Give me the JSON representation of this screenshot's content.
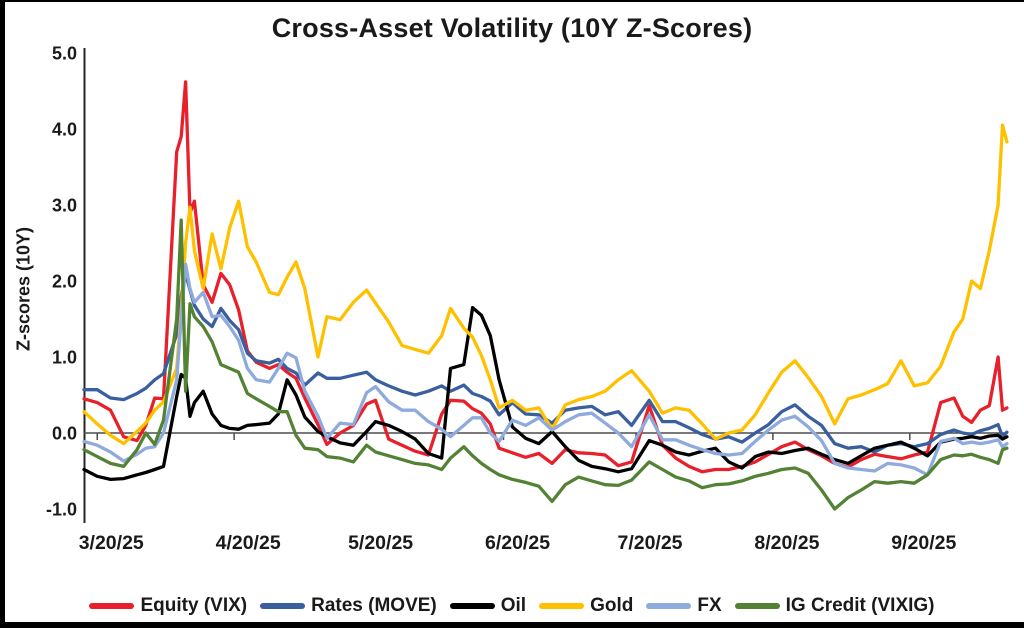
{
  "title": "Cross-Asset Volatility (10Y Z-Scores)",
  "y_axis_title": "Z-scores (10Y)",
  "chart_data": {
    "type": "line",
    "title": "Cross-Asset Volatility (10Y Z-Scores)",
    "ylabel": "Z-scores (10Y)",
    "ylim": [
      -1.0,
      5.0
    ],
    "grid": false,
    "legend_position": "bottom",
    "y_ticks": [
      "5.0",
      "4.0",
      "3.0",
      "2.0",
      "1.0",
      "0.0",
      "-1.0"
    ],
    "x_tick_labels": [
      "3/20/25",
      "4/20/25",
      "5/20/25",
      "6/20/25",
      "7/20/25",
      "8/20/25",
      "9/20/25"
    ],
    "x": [
      "3/17",
      "3/20",
      "3/23",
      "3/26",
      "3/29",
      "3/31",
      "4/2",
      "4/4",
      "4/7",
      "4/8",
      "4/9",
      "4/10",
      "4/11",
      "4/13",
      "4/15",
      "4/17",
      "4/19",
      "4/21",
      "4/23",
      "4/25",
      "4/28",
      "4/30",
      "5/2",
      "5/4",
      "5/6",
      "5/9",
      "5/11",
      "5/14",
      "5/17",
      "5/20",
      "5/22",
      "5/25",
      "5/28",
      "5/31",
      "6/3",
      "6/6",
      "6/8",
      "6/11",
      "6/13",
      "6/15",
      "6/17",
      "6/19",
      "6/22",
      "6/25",
      "6/28",
      "7/1",
      "7/4",
      "7/7",
      "7/10",
      "7/13",
      "7/16",
      "7/19",
      "7/23",
      "7/26",
      "7/29",
      "8/1",
      "8/4",
      "8/7",
      "8/10",
      "8/13",
      "8/16",
      "8/19",
      "8/22",
      "8/25",
      "8/28",
      "8/31",
      "9/3",
      "9/6",
      "9/9",
      "9/12",
      "9/15",
      "9/18",
      "9/21",
      "9/24",
      "9/27",
      "9/30",
      "10/2",
      "10/4",
      "10/6",
      "10/8",
      "10/10",
      "10/11",
      "10/12"
    ],
    "series": [
      {
        "name": "Equity (VIX)",
        "color": "#e8202c",
        "values": [
          0.45,
          0.4,
          0.3,
          -0.05,
          -0.1,
          0.1,
          0.46,
          0.45,
          3.7,
          3.9,
          4.62,
          2.9,
          3.05,
          1.95,
          1.72,
          2.1,
          1.95,
          1.62,
          1.08,
          0.93,
          0.85,
          0.9,
          0.8,
          0.72,
          0.46,
          0.11,
          -0.15,
          0.0,
          0.1,
          0.38,
          0.43,
          -0.08,
          -0.16,
          -0.24,
          -0.29,
          0.25,
          0.43,
          0.42,
          0.32,
          0.26,
          0.12,
          -0.2,
          -0.26,
          -0.32,
          -0.27,
          -0.4,
          -0.22,
          -0.26,
          -0.27,
          -0.29,
          -0.43,
          -0.38,
          0.36,
          -0.16,
          -0.33,
          -0.44,
          -0.51,
          -0.48,
          -0.48,
          -0.44,
          -0.38,
          -0.28,
          -0.18,
          -0.12,
          -0.22,
          -0.3,
          -0.4,
          -0.45,
          -0.35,
          -0.28,
          -0.31,
          -0.34,
          -0.29,
          -0.25,
          0.4,
          0.46,
          0.22,
          0.14,
          0.3,
          0.36,
          1.0,
          0.3,
          0.33
        ]
      },
      {
        "name": "Rates (MOVE)",
        "color": "#3a5f9e",
        "values": [
          0.57,
          0.57,
          0.46,
          0.44,
          0.52,
          0.59,
          0.7,
          0.78,
          1.3,
          1.8,
          2.1,
          1.88,
          1.68,
          1.5,
          1.4,
          1.64,
          1.48,
          1.36,
          1.05,
          0.95,
          0.92,
          0.97,
          0.85,
          0.79,
          0.63,
          0.79,
          0.72,
          0.72,
          0.76,
          0.8,
          0.7,
          0.62,
          0.55,
          0.5,
          0.55,
          0.62,
          0.55,
          0.63,
          0.52,
          0.48,
          0.42,
          0.24,
          0.4,
          0.25,
          0.24,
          0.13,
          0.3,
          0.33,
          0.35,
          0.24,
          0.28,
          0.1,
          0.43,
          0.15,
          0.15,
          0.07,
          -0.02,
          -0.08,
          -0.05,
          -0.12,
          0.0,
          0.11,
          0.28,
          0.37,
          0.22,
          0.1,
          -0.14,
          -0.2,
          -0.18,
          -0.25,
          -0.16,
          -0.14,
          -0.18,
          -0.14,
          -0.02,
          0.04,
          0.0,
          -0.02,
          0.03,
          0.06,
          0.11,
          -0.05,
          0.01
        ]
      },
      {
        "name": "Oil",
        "color": "#000000",
        "values": [
          -0.48,
          -0.57,
          -0.61,
          -0.6,
          -0.55,
          -0.52,
          -0.48,
          -0.44,
          0.48,
          0.77,
          0.72,
          0.22,
          0.4,
          0.55,
          0.25,
          0.1,
          0.06,
          0.05,
          0.1,
          0.11,
          0.13,
          0.25,
          0.7,
          0.5,
          0.21,
          0.02,
          -0.05,
          -0.13,
          -0.16,
          0.02,
          0.15,
          0.1,
          0.02,
          -0.08,
          -0.27,
          -0.33,
          0.85,
          0.9,
          1.65,
          1.55,
          1.28,
          0.7,
          0.08,
          -0.07,
          -0.14,
          0.02,
          -0.18,
          -0.36,
          -0.44,
          -0.47,
          -0.51,
          -0.47,
          -0.1,
          -0.16,
          -0.25,
          -0.29,
          -0.24,
          -0.2,
          -0.38,
          -0.46,
          -0.31,
          -0.25,
          -0.27,
          -0.23,
          -0.2,
          -0.28,
          -0.35,
          -0.4,
          -0.3,
          -0.2,
          -0.16,
          -0.12,
          -0.2,
          -0.3,
          -0.12,
          -0.08,
          -0.07,
          -0.05,
          -0.07,
          -0.04,
          -0.03,
          -0.08,
          -0.05
        ]
      },
      {
        "name": "Gold",
        "color": "#ffc000",
        "values": [
          0.28,
          0.12,
          -0.03,
          -0.14,
          0.02,
          0.13,
          0.3,
          0.41,
          0.85,
          1.6,
          2.5,
          2.97,
          2.4,
          1.9,
          2.62,
          2.16,
          2.7,
          3.05,
          2.45,
          2.25,
          1.85,
          1.82,
          2.05,
          2.25,
          1.9,
          1.0,
          1.53,
          1.49,
          1.72,
          1.88,
          1.71,
          1.46,
          1.15,
          1.1,
          1.05,
          1.28,
          1.64,
          1.38,
          1.26,
          1.02,
          0.7,
          0.33,
          0.43,
          0.3,
          0.33,
          0.05,
          0.37,
          0.44,
          0.48,
          0.55,
          0.7,
          0.82,
          0.55,
          0.26,
          0.33,
          0.3,
          0.12,
          -0.08,
          0.0,
          0.04,
          0.24,
          0.53,
          0.8,
          0.95,
          0.73,
          0.48,
          0.12,
          0.45,
          0.5,
          0.57,
          0.65,
          0.95,
          0.62,
          0.66,
          0.88,
          1.33,
          1.5,
          2.0,
          1.9,
          2.4,
          3.0,
          4.05,
          3.83
        ]
      },
      {
        "name": "FX",
        "color": "#8faadc",
        "values": [
          -0.11,
          -0.16,
          -0.25,
          -0.37,
          -0.28,
          -0.2,
          -0.18,
          0.0,
          0.7,
          1.5,
          2.22,
          1.9,
          1.72,
          1.85,
          1.53,
          1.55,
          1.4,
          1.22,
          0.85,
          0.7,
          0.67,
          0.85,
          1.05,
          0.99,
          0.55,
          0.22,
          -0.07,
          0.13,
          0.11,
          0.53,
          0.61,
          0.41,
          0.3,
          0.3,
          0.15,
          0.05,
          -0.05,
          0.1,
          0.2,
          0.2,
          0.0,
          -0.11,
          0.17,
          0.1,
          0.2,
          0.04,
          0.15,
          0.24,
          0.26,
          0.13,
          0.0,
          -0.18,
          0.24,
          -0.09,
          -0.09,
          -0.16,
          -0.22,
          -0.27,
          -0.29,
          -0.27,
          -0.11,
          0.04,
          0.17,
          0.22,
          0.08,
          -0.1,
          -0.4,
          -0.46,
          -0.48,
          -0.5,
          -0.4,
          -0.42,
          -0.46,
          -0.55,
          -0.11,
          -0.07,
          -0.14,
          -0.12,
          -0.14,
          -0.12,
          -0.09,
          -0.18,
          -0.14
        ]
      },
      {
        "name": "IG Credit (VIXIG)",
        "color": "#548235",
        "values": [
          -0.22,
          -0.31,
          -0.4,
          -0.44,
          -0.22,
          0.0,
          -0.15,
          0.17,
          1.5,
          2.8,
          0.55,
          1.7,
          1.53,
          1.4,
          1.2,
          0.9,
          0.85,
          0.8,
          0.52,
          0.45,
          0.35,
          0.28,
          0.28,
          -0.03,
          -0.2,
          -0.22,
          -0.31,
          -0.33,
          -0.38,
          -0.16,
          -0.25,
          -0.3,
          -0.35,
          -0.4,
          -0.42,
          -0.48,
          -0.33,
          -0.18,
          -0.3,
          -0.4,
          -0.48,
          -0.55,
          -0.61,
          -0.65,
          -0.7,
          -0.9,
          -0.68,
          -0.58,
          -0.63,
          -0.68,
          -0.69,
          -0.62,
          -0.38,
          -0.48,
          -0.58,
          -0.63,
          -0.72,
          -0.68,
          -0.67,
          -0.63,
          -0.57,
          -0.53,
          -0.48,
          -0.46,
          -0.53,
          -0.75,
          -1.0,
          -0.85,
          -0.75,
          -0.64,
          -0.66,
          -0.64,
          -0.66,
          -0.55,
          -0.35,
          -0.29,
          -0.3,
          -0.28,
          -0.32,
          -0.35,
          -0.4,
          -0.22,
          -0.2
        ]
      }
    ]
  }
}
